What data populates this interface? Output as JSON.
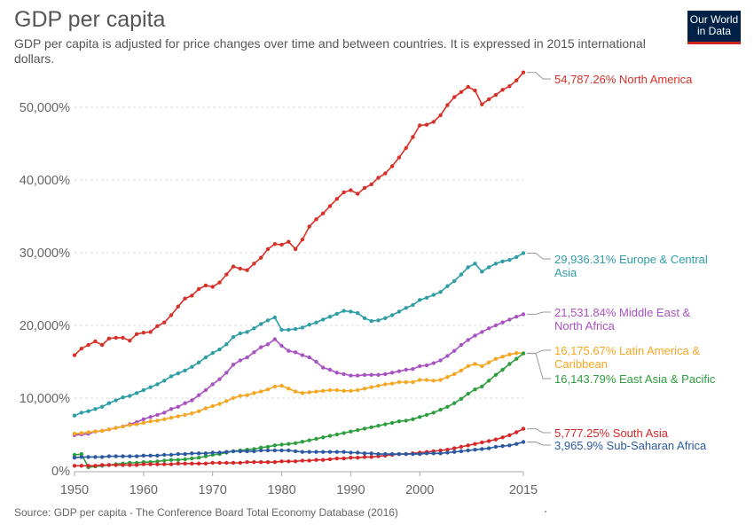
{
  "header": {
    "title": "GDP per capita",
    "subtitle": "GDP per capita is adjusted for price changes over time and between countries. It is expressed in 2015 international dollars."
  },
  "logo": {
    "line1": "Our World",
    "line2": "in Data"
  },
  "footer": {
    "source": "Source: GDP per capita - The Conference Board Total Economy Database (2016)"
  },
  "chart_data": {
    "type": "line",
    "title": "GDP per capita",
    "xlabel": "",
    "ylabel": "",
    "xlim": [
      1950,
      2015
    ],
    "ylim": [
      0,
      55000
    ],
    "y_ticks": [
      0,
      10000,
      20000,
      30000,
      40000,
      50000
    ],
    "y_tick_labels": [
      "0%",
      "10,000%",
      "20,000%",
      "30,000%",
      "40,000%",
      "50,000%"
    ],
    "x_ticks": [
      1950,
      1960,
      1970,
      1980,
      1990,
      2000,
      2015
    ],
    "x_tick_labels": [
      "1950",
      "1960",
      "1970",
      "1980",
      "1990",
      "2000",
      "2015"
    ],
    "grid": "horizontal dashed",
    "x": [
      1950,
      1951,
      1952,
      1953,
      1954,
      1955,
      1956,
      1957,
      1958,
      1959,
      1960,
      1961,
      1962,
      1963,
      1964,
      1965,
      1966,
      1967,
      1968,
      1969,
      1970,
      1971,
      1972,
      1973,
      1974,
      1975,
      1976,
      1977,
      1978,
      1979,
      1980,
      1981,
      1982,
      1983,
      1984,
      1985,
      1986,
      1987,
      1988,
      1989,
      1990,
      1991,
      1992,
      1993,
      1994,
      1995,
      1996,
      1997,
      1998,
      1999,
      2000,
      2001,
      2002,
      2003,
      2004,
      2005,
      2006,
      2007,
      2008,
      2009,
      2010,
      2011,
      2012,
      2013,
      2014,
      2015
    ],
    "series": [
      {
        "name": "North America",
        "end_label": "54,787.26% North America",
        "color": "#d73027",
        "values": [
          15900,
          16800,
          17300,
          17800,
          17300,
          18200,
          18300,
          18300,
          17900,
          18800,
          19000,
          19100,
          19900,
          20400,
          21400,
          22600,
          23700,
          24100,
          25000,
          25500,
          25300,
          25900,
          27000,
          28100,
          27800,
          27600,
          28500,
          29300,
          30500,
          31200,
          31100,
          31500,
          30500,
          31800,
          33600,
          34600,
          35400,
          36400,
          37400,
          38300,
          38600,
          38100,
          38900,
          39400,
          40300,
          40900,
          41900,
          43100,
          44400,
          45900,
          47500,
          47600,
          48000,
          48900,
          50300,
          51400,
          52100,
          52800,
          52300,
          50400,
          51100,
          51700,
          52400,
          52900,
          53700,
          54787
        ]
      },
      {
        "name": "Europe & Central Asia",
        "end_label": "29,936.31% Europe & Central Asia",
        "color": "#2e9da6",
        "values": [
          7600,
          8000,
          8200,
          8500,
          8800,
          9300,
          9700,
          10100,
          10300,
          10700,
          11100,
          11500,
          11900,
          12400,
          13000,
          13400,
          13800,
          14300,
          14900,
          15600,
          16200,
          16700,
          17400,
          18400,
          18900,
          19100,
          19600,
          20200,
          20700,
          21100,
          19400,
          19400,
          19500,
          19700,
          20100,
          20400,
          20800,
          21200,
          21600,
          22000,
          21900,
          21700,
          21000,
          20600,
          20700,
          21000,
          21400,
          21900,
          22400,
          22800,
          23500,
          23800,
          24200,
          24600,
          25400,
          26100,
          27000,
          28000,
          28500,
          27400,
          28000,
          28500,
          28800,
          29000,
          29400,
          29936
        ]
      },
      {
        "name": "Middle East & North Africa",
        "end_label": "21,531.84% Middle East & North Africa",
        "color": "#a952c1",
        "values": [
          4900,
          5000,
          5100,
          5400,
          5500,
          5700,
          5900,
          6100,
          6400,
          6700,
          7100,
          7400,
          7700,
          8000,
          8500,
          8800,
          9300,
          9700,
          10400,
          11100,
          11900,
          12600,
          13500,
          14600,
          15200,
          15600,
          16300,
          17000,
          17400,
          18100,
          17200,
          16500,
          16300,
          15900,
          15600,
          15000,
          14200,
          13900,
          13500,
          13300,
          13100,
          13100,
          13200,
          13200,
          13200,
          13300,
          13500,
          13700,
          13900,
          14000,
          14400,
          14500,
          14800,
          15200,
          15800,
          16500,
          17300,
          18000,
          18600,
          19100,
          19600,
          20000,
          20400,
          20800,
          21200,
          21532
        ]
      },
      {
        "name": "Latin America & Caribbean",
        "end_label": "16,175.67% Latin America & Caribbean",
        "color": "#f5a623",
        "values": [
          5100,
          5200,
          5300,
          5400,
          5500,
          5700,
          5900,
          6100,
          6300,
          6400,
          6600,
          6800,
          6900,
          7100,
          7300,
          7500,
          7700,
          7900,
          8200,
          8600,
          8900,
          9200,
          9600,
          10000,
          10300,
          10400,
          10700,
          10900,
          11200,
          11600,
          11700,
          11300,
          10900,
          10700,
          10800,
          10900,
          11000,
          11100,
          11100,
          11000,
          11000,
          11100,
          11300,
          11500,
          11700,
          11900,
          12000,
          12200,
          12200,
          12200,
          12500,
          12500,
          12400,
          12500,
          12900,
          13300,
          13800,
          14400,
          14700,
          14400,
          14900,
          15400,
          15700,
          16000,
          16200,
          16176
        ]
      },
      {
        "name": "East Asia & Pacific",
        "end_label": "16,143.79% East Asia & Pacific",
        "color": "#2e9e3f",
        "values": [
          2200,
          2300,
          500,
          600,
          700,
          800,
          900,
          1000,
          1100,
          1100,
          1200,
          1200,
          1300,
          1400,
          1500,
          1500,
          1600,
          1700,
          1800,
          2000,
          2200,
          2300,
          2500,
          2700,
          2800,
          2900,
          3000,
          3200,
          3300,
          3500,
          3600,
          3700,
          3800,
          4000,
          4200,
          4400,
          4600,
          4800,
          5000,
          5200,
          5400,
          5600,
          5800,
          6000,
          6200,
          6400,
          6600,
          6800,
          6900,
          7100,
          7400,
          7700,
          8000,
          8400,
          8800,
          9300,
          9900,
          10600,
          11200,
          11600,
          12400,
          13200,
          13900,
          14700,
          15400,
          16144
        ]
      },
      {
        "name": "South Asia",
        "end_label": "5,777.25% South Asia",
        "color": "#d62728",
        "values": [
          700,
          700,
          700,
          700,
          800,
          800,
          800,
          800,
          800,
          800,
          900,
          900,
          900,
          900,
          900,
          1000,
          1000,
          1000,
          1000,
          1000,
          1100,
          1100,
          1100,
          1100,
          1100,
          1200,
          1200,
          1200,
          1200,
          1200,
          1300,
          1300,
          1300,
          1400,
          1400,
          1500,
          1500,
          1600,
          1700,
          1700,
          1800,
          1800,
          1900,
          1900,
          2000,
          2100,
          2200,
          2300,
          2300,
          2400,
          2500,
          2600,
          2700,
          2800,
          2900,
          3100,
          3300,
          3500,
          3700,
          3900,
          4100,
          4300,
          4600,
          4900,
          5300,
          5777
        ]
      },
      {
        "name": "Sub-Saharan Africa",
        "end_label": "3,965.9% Sub-Saharan Africa",
        "color": "#2c5aa0",
        "values": [
          1800,
          1900,
          1900,
          1900,
          1900,
          2000,
          2000,
          2000,
          2000,
          2000,
          2100,
          2100,
          2100,
          2200,
          2200,
          2300,
          2300,
          2400,
          2400,
          2400,
          2500,
          2500,
          2600,
          2700,
          2700,
          2700,
          2700,
          2800,
          2800,
          2800,
          2800,
          2800,
          2700,
          2600,
          2600,
          2600,
          2600,
          2600,
          2600,
          2600,
          2500,
          2500,
          2400,
          2400,
          2300,
          2300,
          2300,
          2300,
          2300,
          2300,
          2300,
          2400,
          2400,
          2400,
          2500,
          2600,
          2700,
          2800,
          2900,
          3000,
          3100,
          3300,
          3400,
          3500,
          3700,
          3966
        ]
      }
    ]
  }
}
